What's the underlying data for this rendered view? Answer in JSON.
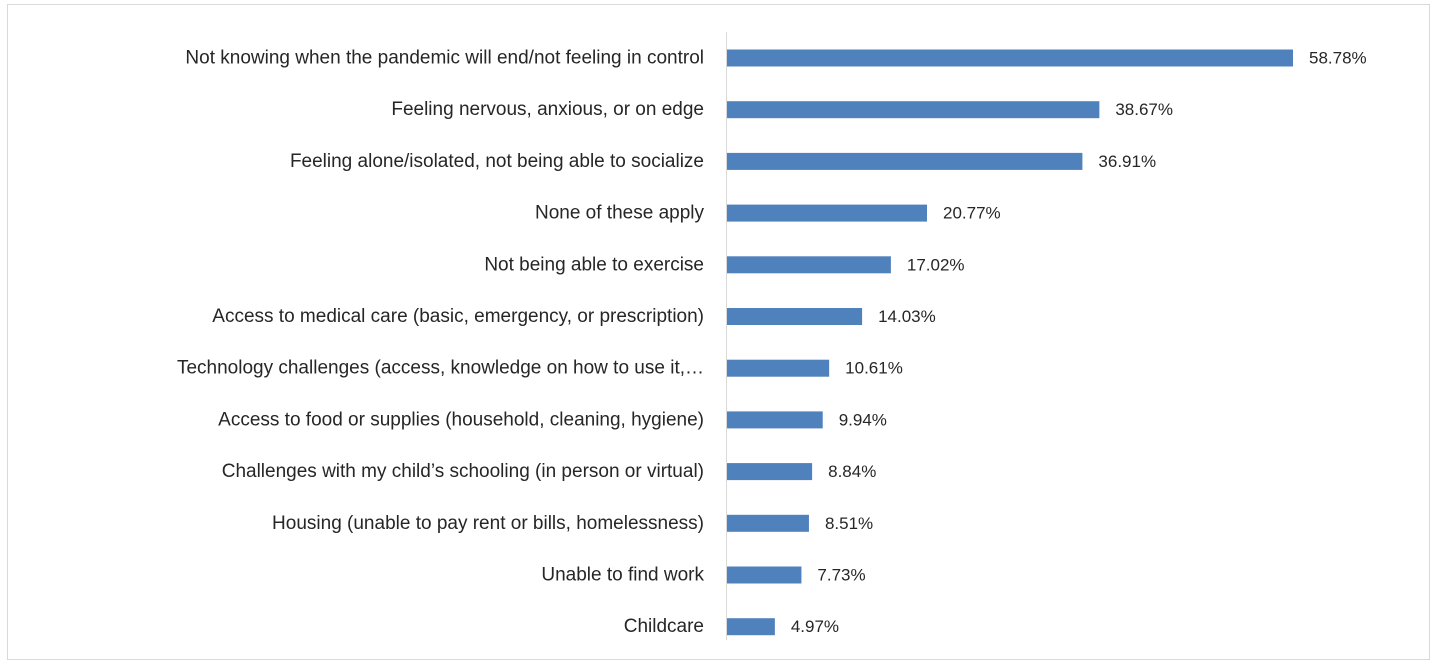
{
  "chart_data": {
    "type": "bar",
    "orientation": "horizontal",
    "title": "",
    "xlabel": "",
    "ylabel": "",
    "xlim": [
      0,
      67
    ],
    "grid": false,
    "legend": "none",
    "categories": [
      "Not knowing when the pandemic will end/not feeling in control",
      "Feeling nervous, anxious, or on edge",
      "Feeling alone/isolated, not being able to socialize",
      "None of these apply",
      "Not being able to exercise",
      "Access to medical care (basic, emergency, or prescription)",
      "Technology challenges (access, knowledge on how to use it,…",
      "Access to food or supplies (household, cleaning, hygiene)",
      "Challenges with my child’s schooling (in person or virtual)",
      "Housing (unable to pay rent or bills, homelessness)",
      "Unable to find work",
      "Childcare"
    ],
    "values": [
      58.78,
      38.67,
      36.91,
      20.77,
      17.02,
      14.03,
      10.61,
      9.94,
      8.84,
      8.51,
      7.73,
      4.97
    ],
    "value_labels": [
      "58.78%",
      "38.67%",
      "36.91%",
      "20.77%",
      "17.02%",
      "14.03%",
      "10.61%",
      "9.94%",
      "8.84%",
      "8.51%",
      "7.73%",
      "4.97%"
    ]
  },
  "colors": {
    "bar": "#4f81bd",
    "title": "#1f3f8f",
    "text": "#262626",
    "axis": "#d9d9d9",
    "border": "#d9d9d9"
  }
}
